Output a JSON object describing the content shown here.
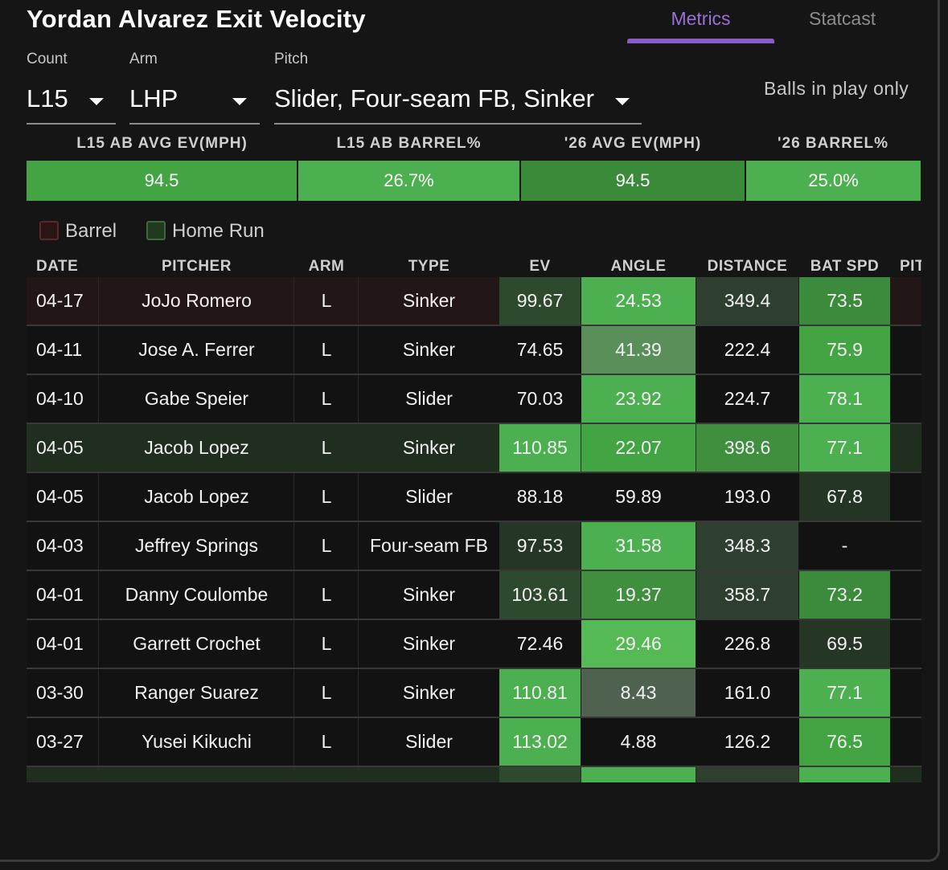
{
  "title": "Yordan Alvarez Exit Velocity",
  "tabs": {
    "metrics": "Metrics",
    "statcast": "Statcast",
    "active": "Metrics"
  },
  "filters": {
    "count_label": "Count",
    "count_value": "L15",
    "arm_label": "Arm",
    "arm_value": "LHP",
    "pitch_label": "Pitch",
    "pitch_value": "Slider, Four-seam FB, Sinker",
    "balls_in_play": "Balls in play only"
  },
  "summary": {
    "h1": "L15 AB AVG EV(MPH)",
    "v1": "94.5",
    "h2": "L15 AB BARREL%",
    "v2": "26.7%",
    "h3": "'26 AVG EV(MPH)",
    "v3": "94.5",
    "h4": "'26 BARREL%",
    "v4": "25.0%"
  },
  "legend": {
    "barrel": "Barrel",
    "home_run": "Home Run"
  },
  "columns": {
    "date": "DATE",
    "pitcher": "PITCHER",
    "arm": "ARM",
    "type": "TYPE",
    "ev": "EV",
    "angle": "ANGLE",
    "distance": "DISTANCE",
    "bat_spd": "BAT SPD",
    "pitch_cut": "PIT"
  },
  "rows": [
    {
      "date": "04-17",
      "pitcher": "JoJo Romero",
      "arm": "L",
      "type": "Sinker",
      "ev": "99.67",
      "angle": "24.53",
      "distance": "349.4",
      "bat_spd": "73.5",
      "row_bg": "#231616",
      "ev_bg": "#2e4a2e",
      "angle_bg": "#4caf50",
      "dist_bg": "#2f3f2f",
      "bat_bg": "#3c8a3c"
    },
    {
      "date": "04-11",
      "pitcher": "Jose A. Ferrer",
      "arm": "L",
      "type": "Sinker",
      "ev": "74.65",
      "angle": "41.39",
      "distance": "222.4",
      "bat_spd": "75.9",
      "row_bg": "#121212",
      "ev_bg": "#121212",
      "angle_bg": "#5a8f5a",
      "dist_bg": "#121212",
      "bat_bg": "#43a443"
    },
    {
      "date": "04-10",
      "pitcher": "Gabe Speier",
      "arm": "L",
      "type": "Slider",
      "ev": "70.03",
      "angle": "23.92",
      "distance": "224.7",
      "bat_spd": "78.1",
      "row_bg": "#121212",
      "ev_bg": "#121212",
      "angle_bg": "#4caf50",
      "dist_bg": "#121212",
      "bat_bg": "#4caf50"
    },
    {
      "date": "04-05",
      "pitcher": "Jacob Lopez",
      "arm": "L",
      "type": "Sinker",
      "ev": "110.85",
      "angle": "22.07",
      "distance": "398.6",
      "bat_spd": "77.1",
      "row_bg": "#1f2e1f",
      "ev_bg": "#4caf50",
      "angle_bg": "#43a443",
      "dist_bg": "#3f8f3f",
      "bat_bg": "#4caf50"
    },
    {
      "date": "04-05",
      "pitcher": "Jacob Lopez",
      "arm": "L",
      "type": "Slider",
      "ev": "88.18",
      "angle": "59.89",
      "distance": "193.0",
      "bat_spd": "67.8",
      "row_bg": "#121212",
      "ev_bg": "#121212",
      "angle_bg": "#121212",
      "dist_bg": "#121212",
      "bat_bg": "#243524"
    },
    {
      "date": "04-03",
      "pitcher": "Jeffrey Springs",
      "arm": "L",
      "type": "Four-seam FB",
      "ev": "97.53",
      "angle": "31.58",
      "distance": "348.3",
      "bat_spd": "-",
      "row_bg": "#121212",
      "ev_bg": "#253625",
      "angle_bg": "#4caf50",
      "dist_bg": "#2f3f2f",
      "bat_bg": "#121212"
    },
    {
      "date": "04-01",
      "pitcher": "Danny Coulombe",
      "arm": "L",
      "type": "Sinker",
      "ev": "103.61",
      "angle": "19.37",
      "distance": "358.7",
      "bat_spd": "73.2",
      "row_bg": "#121212",
      "ev_bg": "#2e4a2e",
      "angle_bg": "#3f8f3f",
      "dist_bg": "#2f3f2f",
      "bat_bg": "#3c8a3c"
    },
    {
      "date": "04-01",
      "pitcher": "Garrett Crochet",
      "arm": "L",
      "type": "Sinker",
      "ev": "72.46",
      "angle": "29.46",
      "distance": "226.8",
      "bat_spd": "69.5",
      "row_bg": "#121212",
      "ev_bg": "#121212",
      "angle_bg": "#55b955",
      "dist_bg": "#121212",
      "bat_bg": "#253625"
    },
    {
      "date": "03-30",
      "pitcher": "Ranger Suarez",
      "arm": "L",
      "type": "Sinker",
      "ev": "110.81",
      "angle": "8.43",
      "distance": "161.0",
      "bat_spd": "77.1",
      "row_bg": "#121212",
      "ev_bg": "#4caf50",
      "angle_bg": "#4f614f",
      "dist_bg": "#121212",
      "bat_bg": "#4caf50"
    },
    {
      "date": "03-27",
      "pitcher": "Yusei Kikuchi",
      "arm": "L",
      "type": "Slider",
      "ev": "113.02",
      "angle": "4.88",
      "distance": "126.2",
      "bat_spd": "76.5",
      "row_bg": "#121212",
      "ev_bg": "#4caf50",
      "angle_bg": "#121212",
      "dist_bg": "#121212",
      "bat_bg": "#43a443"
    },
    {
      "date": "",
      "pitcher": "",
      "arm": "",
      "type": "",
      "ev": "",
      "angle": "",
      "distance": "",
      "bat_spd": "",
      "row_bg": "#1f2e1f",
      "ev_bg": "#2e4a2e",
      "angle_bg": "#4caf50",
      "dist_bg": "#2f3f2f",
      "bat_bg": "#4caf50"
    }
  ]
}
